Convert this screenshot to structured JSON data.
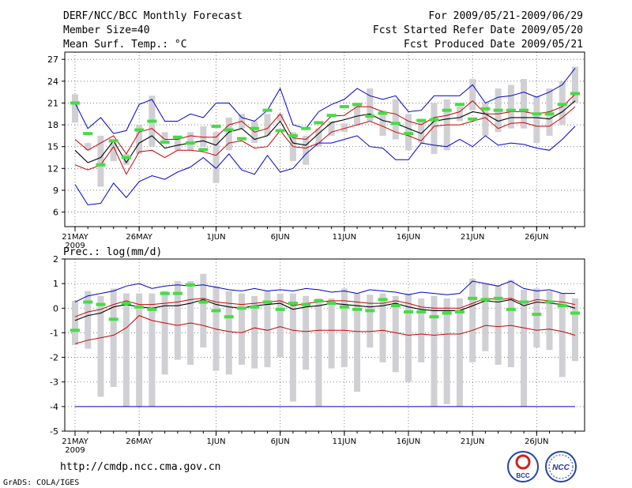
{
  "header": {
    "title": "DERF/NCC/BCC Monthly Forecast",
    "member_size": "Member Size=40",
    "variable_top": "Mean Surf. Temp.: °C",
    "period": "For 2009/05/21-2009/06/29",
    "fcst_started": "Fcst Started Refer Date 2009/05/20",
    "fcst_produced": "Fcst Produced Date 2009/05/21"
  },
  "footer": {
    "url": "http://cmdp.ncc.cma.gov.cn",
    "grads": "GrADS: COLA/IGES",
    "logo_bcc": "BCC",
    "logo_ncc": "NCC"
  },
  "colors": {
    "envelope": "#0000cc",
    "band": "#cc0000",
    "mean": "#000000",
    "box": "#d0d0d4",
    "obs": "#44dd44"
  },
  "chart_data": [
    {
      "type": "line",
      "title": "Mean Surf. Temp.: °C",
      "x_tick_labels": [
        "21MAY",
        "26MAY",
        "1JUN",
        "6JUN",
        "11JUN",
        "16JUN",
        "21JUN",
        "26JUN"
      ],
      "year_label": "2009",
      "x_tick_days": [
        0,
        5,
        11,
        16,
        21,
        26,
        31,
        36
      ],
      "ylim": [
        4,
        28
      ],
      "y_ticks": [
        6,
        9,
        12,
        15,
        18,
        21,
        24,
        27
      ],
      "grid": "dotted",
      "days": 40,
      "series": [
        {
          "name": "max",
          "color": "#0000cc",
          "values": [
            9.8,
            7,
            7.2,
            10,
            8,
            10.2,
            11,
            10.5,
            11.5,
            12.2,
            13.5,
            12,
            14,
            11.8,
            11.2,
            13.8,
            11.5,
            12,
            14,
            15.5,
            15.5,
            16,
            16.5,
            15,
            14.8,
            13.2,
            13.2,
            15.5,
            15.2,
            15,
            16,
            15,
            16.5,
            15.2,
            15.5,
            15.3,
            14.8,
            14.5,
            16,
            17.8
          ]
        },
        {
          "name": "p90",
          "color": "#cc0000",
          "values": [
            12.5,
            11.8,
            12.5,
            15,
            11.2,
            14.3,
            14.5,
            13.5,
            14.5,
            14.5,
            14.3,
            13.8,
            15.5,
            15.8,
            14.8,
            15,
            17.2,
            15,
            14.8,
            15.5,
            17,
            17.5,
            18,
            18.5,
            17.8,
            17,
            16.5,
            15.8,
            17.8,
            18,
            18,
            18.5,
            19,
            17.5,
            18.2,
            18.3,
            17.8,
            17.8,
            19,
            20.5
          ]
        },
        {
          "name": "mean",
          "color": "#000000",
          "values": [
            14.5,
            12.8,
            13.5,
            15.8,
            12.8,
            15.5,
            16.5,
            14.8,
            15.2,
            15.5,
            15.8,
            15.2,
            17,
            17.5,
            16,
            16.5,
            18.5,
            15.5,
            15.2,
            16.8,
            18.3,
            18.7,
            19.2,
            19.5,
            18.6,
            18.2,
            17.5,
            16.8,
            18.5,
            18.8,
            19,
            19.8,
            19.5,
            18.5,
            19,
            19,
            19,
            18.8,
            19.8,
            21.3
          ]
        },
        {
          "name": "p10",
          "color": "#cc0000",
          "values": [
            16,
            14.5,
            15.5,
            16.5,
            14,
            17,
            17.5,
            16,
            16,
            16.5,
            16.3,
            16.3,
            18,
            18.5,
            17,
            17.5,
            19.5,
            16.2,
            16,
            17.5,
            19.2,
            19.3,
            20.5,
            20.5,
            19.8,
            19.5,
            18.5,
            18,
            19,
            19.3,
            19.8,
            21.3,
            19.5,
            19.5,
            19.8,
            19.8,
            19.5,
            19.8,
            20.5,
            22.2
          ]
        },
        {
          "name": "min",
          "color": "#0000cc",
          "values": [
            21,
            17.5,
            19,
            16.8,
            17.2,
            20.8,
            21.5,
            18.5,
            18.5,
            19.5,
            19,
            21,
            21,
            19,
            18.5,
            20,
            23,
            18,
            17.5,
            19.8,
            20.8,
            21.5,
            23,
            22,
            21.5,
            22,
            19.8,
            20,
            22,
            22,
            22,
            23.5,
            21,
            21.8,
            22,
            22.5,
            21.8,
            22.5,
            23.5,
            25.8
          ]
        }
      ],
      "boxes_low": [
        18.3,
        14.5,
        9.5,
        13,
        12.5,
        14,
        15,
        15.8,
        14.5,
        14.5,
        15,
        10,
        14.5,
        17.5,
        15.5,
        16.5,
        18.5,
        13,
        12.5,
        15,
        16.5,
        17,
        18,
        18.5,
        16.5,
        16,
        14.5,
        15.5,
        14,
        14.5,
        18.5,
        20,
        16.5,
        17,
        17.5,
        17.5,
        15.5,
        16.5,
        18,
        21
      ],
      "boxes_high": [
        22.2,
        15.5,
        16.5,
        15.5,
        14,
        18,
        22,
        17,
        16.3,
        17,
        17.8,
        17,
        19,
        19.5,
        18.5,
        19.5,
        19.5,
        17,
        16.5,
        17.5,
        18.5,
        18.2,
        21,
        23,
        20,
        21.5,
        19.5,
        18.8,
        21,
        21.5,
        20.5,
        24.3,
        21,
        23,
        23.5,
        24.3,
        22,
        23,
        24,
        26
      ],
      "observed": [
        21,
        16.8,
        12.5,
        15.8,
        13.5,
        17.3,
        18.5,
        15.6,
        16.3,
        15.5,
        14.6,
        17.8,
        17.3,
        16.1,
        17.5,
        20,
        17.2,
        16.5,
        17.5,
        18.3,
        19.3,
        20.5,
        20.8,
        19.2,
        19.6,
        18.2,
        16.8,
        18.6,
        18.7,
        20,
        20.8,
        18.8,
        20.2,
        20,
        20,
        20,
        19.5,
        19.5,
        20.8,
        22.3
      ]
    },
    {
      "type": "line",
      "title": "Prec.: log(mm/d)",
      "x_tick_labels": [
        "21MAY",
        "26MAY",
        "1JUN",
        "6JUN",
        "11JUN",
        "16JUN",
        "21JUN",
        "26JUN"
      ],
      "year_label": "2009",
      "x_tick_days": [
        0,
        5,
        11,
        16,
        21,
        26,
        31,
        36
      ],
      "ylim": [
        -5,
        2
      ],
      "y_ticks": [
        -5,
        -4,
        -3,
        -2,
        -1,
        0,
        1,
        2
      ],
      "grid": "dotted",
      "days": 40,
      "series": [
        {
          "name": "max",
          "color": "#0000cc",
          "values": [
            0.25,
            0.5,
            0.6,
            0.7,
            0.9,
            1,
            0.8,
            0.9,
            0.95,
            0.9,
            0.95,
            0.85,
            0.75,
            0.7,
            0.8,
            0.7,
            0.75,
            0.7,
            0.8,
            0.75,
            0.65,
            0.7,
            0.6,
            0.75,
            0.7,
            0.65,
            0.55,
            0.65,
            0.6,
            0.55,
            0.6,
            1.1,
            1,
            0.9,
            1.1,
            0.8,
            0.7,
            0.75,
            0.6,
            0.6
          ]
        },
        {
          "name": "p90",
          "color": "#cc0000",
          "values": [
            -1.45,
            -1.3,
            -1.2,
            -1.1,
            -0.8,
            -0.3,
            -0.5,
            -0.6,
            -0.7,
            -0.6,
            -0.7,
            -0.85,
            -0.95,
            -1,
            -0.8,
            -0.9,
            -0.75,
            -0.9,
            -0.95,
            -0.9,
            -0.9,
            -0.9,
            -0.95,
            -0.95,
            -0.9,
            -1,
            -1.1,
            -1.05,
            -1.1,
            -1.05,
            -1.05,
            -0.9,
            -0.7,
            -0.75,
            -0.7,
            -0.8,
            -0.9,
            -0.85,
            -0.95,
            -1.1
          ]
        },
        {
          "name": "mean",
          "color": "#000000",
          "values": [
            -0.5,
            -0.3,
            -0.2,
            0.05,
            0.15,
            0.05,
            0,
            0.1,
            0.1,
            0.2,
            0.35,
            0.15,
            0.05,
            0,
            0.1,
            0.15,
            0.2,
            -0.05,
            0.05,
            0.1,
            0.2,
            0.15,
            0.1,
            0.05,
            0.1,
            0.2,
            0.05,
            -0.05,
            -0.1,
            -0.1,
            -0.1,
            0.1,
            0.3,
            0.25,
            0.35,
            0.1,
            0.25,
            0.2,
            0.15,
            0
          ]
        },
        {
          "name": "p10",
          "color": "#cc0000",
          "values": [
            -0.35,
            -0.15,
            -0.05,
            0.15,
            0.3,
            0.15,
            0.15,
            0.2,
            0.25,
            0.35,
            0.4,
            0.25,
            0.2,
            0.15,
            0.2,
            0.25,
            0.3,
            0.1,
            0.2,
            0.25,
            0.3,
            0.3,
            0.25,
            0.2,
            0.2,
            0.3,
            0.2,
            0.05,
            0,
            0,
            0,
            0.2,
            0.4,
            0.35,
            0.4,
            0.2,
            0.35,
            0.3,
            0.25,
            0.15
          ]
        },
        {
          "name": "min",
          "color": "#0000cc",
          "values": [
            -4,
            -4,
            -4,
            -4,
            -4,
            -4,
            -4,
            -4,
            -4,
            -4,
            -4,
            -4,
            -4,
            -4,
            -4,
            -4,
            -4,
            -4,
            -4,
            -4,
            -4,
            -4,
            -4,
            -4,
            -4,
            -4,
            -4,
            -4,
            -4,
            -4,
            -4,
            -4,
            -4,
            -4,
            -4,
            -4,
            -4,
            -4,
            -4,
            -4
          ]
        }
      ],
      "boxes_low": [
        -1.5,
        -1.65,
        -3.6,
        -3.2,
        -4,
        -4,
        -4,
        -2.7,
        -2.1,
        -2.3,
        -1.6,
        -2.55,
        -2.7,
        -2.3,
        -2.45,
        -2.4,
        -2,
        -3.8,
        -2.5,
        -4,
        -2.45,
        -2.4,
        -3.4,
        -1.6,
        -2.2,
        -2.6,
        -3,
        -2.2,
        -4,
        -3.9,
        -4,
        -2.2,
        -1.75,
        -2.3,
        -2.4,
        -4,
        -1.6,
        -1.7,
        -2.8,
        -2.15
      ],
      "boxes_high": [
        0.3,
        0.7,
        0.5,
        0.8,
        0.6,
        0.6,
        0.6,
        0.7,
        1.1,
        1.1,
        1.4,
        0.9,
        0.7,
        0.6,
        0.5,
        0.7,
        0.6,
        0.6,
        0.5,
        0.4,
        0.4,
        0.8,
        0.6,
        0.55,
        0.6,
        0.5,
        0.6,
        0.4,
        0.5,
        0.4,
        0.4,
        1.2,
        1,
        0.9,
        1.15,
        0.75,
        0.8,
        0.7,
        0.6,
        0.4
      ],
      "observed": [
        -0.9,
        0.25,
        0.15,
        -0.45,
        0.2,
        0.05,
        -0.05,
        0.6,
        0.6,
        0.95,
        0.25,
        -0.1,
        -0.35,
        0,
        0.05,
        0.25,
        -0.05,
        0.2,
        0.15,
        0.3,
        0.2,
        0.05,
        -0.05,
        -0.1,
        0.35,
        0.1,
        -0.15,
        -0.15,
        -0.35,
        -0.2,
        -0.15,
        0.4,
        0.35,
        0.4,
        -0.05,
        0.25,
        -0.25,
        0.25,
        0.1,
        -0.2
      ]
    }
  ]
}
